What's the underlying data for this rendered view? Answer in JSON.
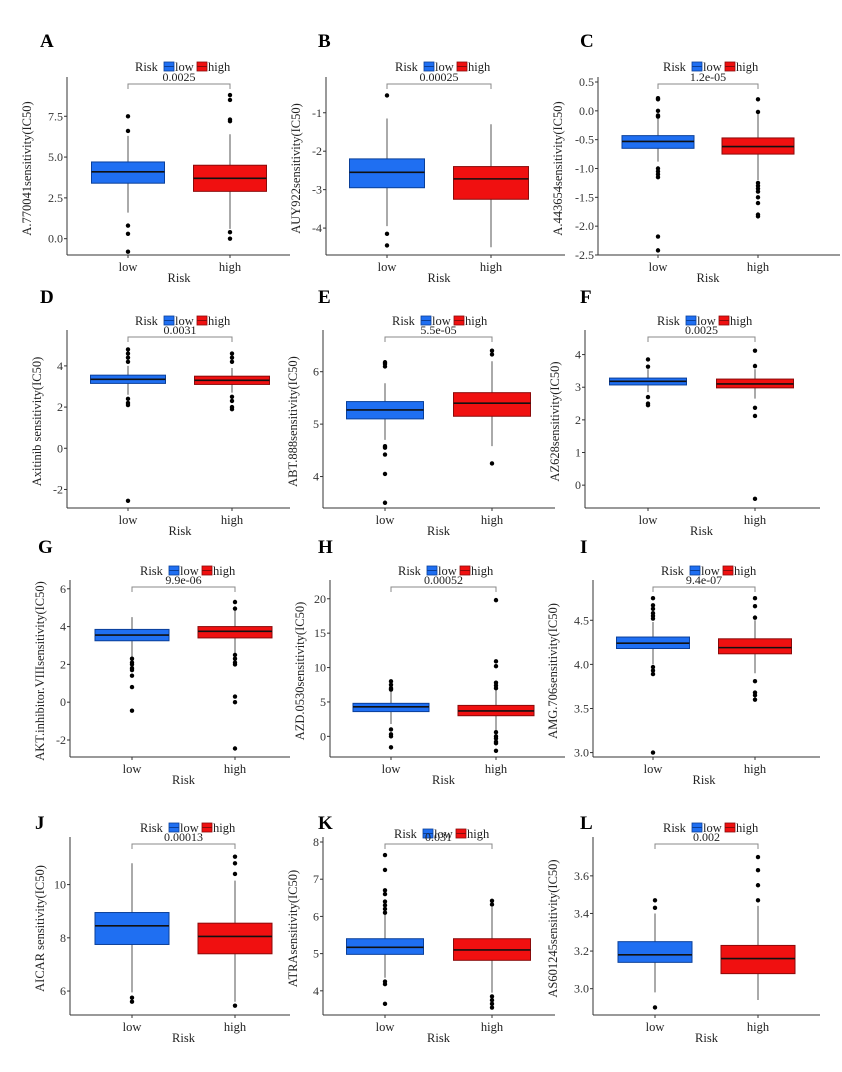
{
  "figure": {
    "legend_title": "Risk",
    "legend_items": [
      {
        "label": "low",
        "color": "#1f6ff2"
      },
      {
        "label": "high",
        "color": "#f01010"
      }
    ],
    "xlabel": "Risk",
    "categories": [
      "low",
      "high"
    ]
  },
  "chart_data": [
    {
      "panel": "A",
      "type": "boxplot",
      "ylabel": "A.770041sensitivity(IC50)",
      "xlabel": "Risk",
      "categories": [
        "low",
        "high"
      ],
      "pvalue": "0.0025",
      "ylim": [
        -1.0,
        9.6
      ],
      "yticks": [
        0.0,
        2.5,
        5.0,
        7.5
      ],
      "ytick_labels": [
        "0.0",
        "2.5",
        "5.0",
        "7.5"
      ],
      "series": [
        {
          "name": "low",
          "q1": 3.4,
          "median": 4.1,
          "q3": 4.7,
          "whisker_low": 1.6,
          "whisker_high": 6.3,
          "outliers": [
            7.5,
            6.6,
            0.8,
            0.3,
            -0.8
          ]
        },
        {
          "name": "high",
          "q1": 2.9,
          "median": 3.7,
          "q3": 4.5,
          "whisker_low": 0.6,
          "whisker_high": 6.4,
          "outliers": [
            8.8,
            8.5,
            7.3,
            7.2,
            0.4,
            0.0
          ]
        }
      ]
    },
    {
      "panel": "B",
      "type": "boxplot",
      "ylabel": "AUY922sensitivity(IC50)",
      "xlabel": "Risk",
      "categories": [
        "low",
        "high"
      ],
      "pvalue": "0.00025",
      "ylim": [
        -4.7,
        -0.2
      ],
      "yticks": [
        -4,
        -3,
        -2,
        -1
      ],
      "ytick_labels": [
        "-4",
        "-3",
        "-2",
        "-1"
      ],
      "series": [
        {
          "name": "low",
          "q1": -2.95,
          "median": -2.55,
          "q3": -2.2,
          "whisker_low": -3.95,
          "whisker_high": -1.15,
          "outliers": [
            -0.55,
            -4.15,
            -4.45
          ]
        },
        {
          "name": "high",
          "q1": -3.25,
          "median": -2.72,
          "q3": -2.4,
          "whisker_low": -4.5,
          "whisker_high": -1.3,
          "outliers": []
        }
      ]
    },
    {
      "panel": "C",
      "type": "boxplot",
      "ylabel": "A.443654sensitivity(IC50)",
      "xlabel": "Risk",
      "categories": [
        "low",
        "high"
      ],
      "pvalue": "1.2e-05",
      "ylim": [
        -2.5,
        0.5
      ],
      "yticks": [
        -2.5,
        -2.0,
        -1.5,
        -1.0,
        -0.5,
        0.0,
        0.5
      ],
      "ytick_labels": [
        "-2.5",
        "-2.0",
        "-1.5",
        "-1.0",
        "-0.5",
        "0.0",
        "0.5"
      ],
      "series": [
        {
          "name": "low",
          "q1": -0.65,
          "median": -0.53,
          "q3": -0.43,
          "whisker_low": -0.88,
          "whisker_high": -0.1,
          "outliers": [
            0.22,
            0.2,
            0.0,
            -0.08,
            -0.1,
            -1.0,
            -1.05,
            -1.1,
            -1.15,
            -2.18,
            -2.42
          ]
        },
        {
          "name": "high",
          "q1": -0.75,
          "median": -0.62,
          "q3": -0.47,
          "whisker_low": -1.2,
          "whisker_high": -0.05,
          "outliers": [
            0.2,
            -0.02,
            -1.25,
            -1.3,
            -1.35,
            -1.4,
            -1.5,
            -1.6,
            -1.8,
            -1.83
          ]
        }
      ]
    },
    {
      "panel": "D",
      "type": "boxplot",
      "ylabel": "Axitinib sensitivity(IC50)",
      "xlabel": "Risk",
      "categories": [
        "low",
        "high"
      ],
      "pvalue": "0.0031",
      "ylim": [
        -2.9,
        5.5
      ],
      "yticks": [
        -2,
        0,
        2,
        4
      ],
      "ytick_labels": [
        "-2",
        "0",
        "2",
        "4"
      ],
      "series": [
        {
          "name": "low",
          "q1": 3.15,
          "median": 3.35,
          "q3": 3.55,
          "whisker_low": 2.6,
          "whisker_high": 4.0,
          "outliers": [
            4.8,
            4.6,
            4.4,
            4.2,
            2.4,
            2.2,
            2.1,
            -2.55
          ]
        },
        {
          "name": "high",
          "q1": 3.1,
          "median": 3.3,
          "q3": 3.5,
          "whisker_low": 2.7,
          "whisker_high": 3.9,
          "outliers": [
            4.6,
            4.4,
            4.2,
            2.5,
            2.3,
            2.0,
            1.9
          ]
        }
      ]
    },
    {
      "panel": "E",
      "type": "boxplot",
      "ylabel": "ABT.888sensitivity(IC50)",
      "xlabel": "Risk",
      "categories": [
        "low",
        "high"
      ],
      "pvalue": "5.5e-05",
      "ylim": [
        3.4,
        6.7
      ],
      "yticks": [
        4,
        5,
        6
      ],
      "ytick_labels": [
        "4",
        "5",
        "6"
      ],
      "series": [
        {
          "name": "low",
          "q1": 5.1,
          "median": 5.27,
          "q3": 5.43,
          "whisker_low": 4.7,
          "whisker_high": 5.78,
          "outliers": [
            6.18,
            6.15,
            6.1,
            4.58,
            4.55,
            4.42,
            4.05,
            3.5
          ]
        },
        {
          "name": "high",
          "q1": 5.15,
          "median": 5.4,
          "q3": 5.6,
          "whisker_low": 4.58,
          "whisker_high": 6.2,
          "outliers": [
            6.4,
            6.33,
            4.25
          ]
        }
      ]
    },
    {
      "panel": "F",
      "type": "boxplot",
      "ylabel": "AZ628sensitivity(IC50)",
      "xlabel": "Risk",
      "categories": [
        "low",
        "high"
      ],
      "pvalue": "0.0025",
      "ylim": [
        -0.7,
        4.6
      ],
      "yticks": [
        0,
        1,
        2,
        3,
        4
      ],
      "ytick_labels": [
        "0",
        "1",
        "2",
        "3",
        "4"
      ],
      "series": [
        {
          "name": "low",
          "q1": 3.07,
          "median": 3.18,
          "q3": 3.28,
          "whisker_low": 2.85,
          "whisker_high": 3.55,
          "outliers": [
            3.85,
            3.63,
            2.7,
            2.5,
            2.45
          ]
        },
        {
          "name": "high",
          "q1": 2.98,
          "median": 3.1,
          "q3": 3.25,
          "whisker_low": 2.65,
          "whisker_high": 3.55,
          "outliers": [
            4.12,
            3.65,
            2.37,
            2.12,
            -0.42
          ]
        }
      ]
    },
    {
      "panel": "G",
      "type": "boxplot",
      "ylabel": "AKT.inhibitor.VIIIsensitivity(IC50)",
      "xlabel": "Risk",
      "categories": [
        "low",
        "high"
      ],
      "pvalue": "9.9e-06",
      "ylim": [
        -2.9,
        6.2
      ],
      "yticks": [
        -2,
        0,
        2,
        4,
        6
      ],
      "ytick_labels": [
        "-2",
        "0",
        "2",
        "4",
        "6"
      ],
      "series": [
        {
          "name": "low",
          "q1": 3.25,
          "median": 3.55,
          "q3": 3.85,
          "whisker_low": 2.4,
          "whisker_high": 4.5,
          "outliers": [
            2.3,
            2.1,
            2.0,
            1.8,
            1.7,
            1.4,
            0.8,
            -0.45
          ]
        },
        {
          "name": "high",
          "q1": 3.4,
          "median": 3.75,
          "q3": 4.0,
          "whisker_low": 2.6,
          "whisker_high": 4.9,
          "outliers": [
            5.3,
            4.95,
            2.5,
            2.3,
            2.1,
            2.0,
            0.3,
            0.0,
            -2.45
          ]
        }
      ]
    },
    {
      "panel": "H",
      "type": "boxplot",
      "ylabel": "AZD.0530sensitivity(IC50)",
      "xlabel": "Risk",
      "categories": [
        "low",
        "high"
      ],
      "pvalue": "0.00052",
      "ylim": [
        -3.0,
        22.0
      ],
      "yticks": [
        0,
        5,
        10,
        15,
        20
      ],
      "ytick_labels": [
        "0",
        "5",
        "10",
        "15",
        "20"
      ],
      "series": [
        {
          "name": "low",
          "q1": 3.6,
          "median": 4.3,
          "q3": 4.8,
          "whisker_low": 1.8,
          "whisker_high": 6.6,
          "outliers": [
            8.0,
            7.5,
            7.0,
            6.8,
            1.0,
            0.3,
            0.0,
            -1.6
          ]
        },
        {
          "name": "high",
          "q1": 3.0,
          "median": 3.7,
          "q3": 4.5,
          "whisker_low": 0.8,
          "whisker_high": 6.8,
          "outliers": [
            19.8,
            10.9,
            10.2,
            7.8,
            7.4,
            7.0,
            0.6,
            0.0,
            -0.3,
            -0.8,
            -1.0,
            -2.1
          ]
        }
      ]
    },
    {
      "panel": "I",
      "type": "boxplot",
      "ylabel": "AMG.706sensitivity(IC50)",
      "xlabel": "Risk",
      "categories": [
        "low",
        "high"
      ],
      "pvalue": "9.4e-07",
      "ylim": [
        2.95,
        4.9
      ],
      "yticks": [
        3.0,
        3.5,
        4.0,
        4.5
      ],
      "ytick_labels": [
        "3.0",
        "3.5",
        "4.0",
        "4.5"
      ],
      "series": [
        {
          "name": "low",
          "q1": 4.18,
          "median": 4.24,
          "q3": 4.31,
          "whisker_low": 4.0,
          "whisker_high": 4.48,
          "outliers": [
            4.75,
            4.67,
            4.63,
            4.58,
            4.55,
            4.52,
            3.97,
            3.93,
            3.89,
            3.0
          ]
        },
        {
          "name": "high",
          "q1": 4.12,
          "median": 4.19,
          "q3": 4.29,
          "whisker_low": 3.9,
          "whisker_high": 4.5,
          "outliers": [
            4.75,
            4.66,
            4.53,
            3.81,
            3.68,
            3.65,
            3.6
          ]
        }
      ]
    },
    {
      "panel": "J",
      "type": "boxplot",
      "ylabel": "AICAR sensitivity(IC50)",
      "xlabel": "Risk",
      "categories": [
        "low",
        "high"
      ],
      "pvalue": "0.00013",
      "ylim": [
        5.1,
        11.6
      ],
      "yticks": [
        6,
        8,
        10
      ],
      "ytick_labels": [
        "6",
        "8",
        "10"
      ],
      "series": [
        {
          "name": "low",
          "q1": 7.75,
          "median": 8.45,
          "q3": 8.95,
          "whisker_low": 5.95,
          "whisker_high": 10.8,
          "outliers": [
            5.75,
            5.6
          ]
        },
        {
          "name": "high",
          "q1": 7.4,
          "median": 8.05,
          "q3": 8.55,
          "whisker_low": 5.6,
          "whisker_high": 10.15,
          "outliers": [
            11.05,
            10.8,
            10.4,
            5.45
          ]
        }
      ]
    },
    {
      "panel": "K",
      "type": "boxplot",
      "ylabel": "ATRAsensitivity(IC50)",
      "xlabel": "Risk",
      "categories": [
        "low",
        "high"
      ],
      "pvalue": "0.031",
      "ylim": [
        3.35,
        8.0
      ],
      "yticks": [
        4,
        5,
        6,
        7,
        8
      ],
      "ytick_labels": [
        "4",
        "5",
        "6",
        "7",
        "8"
      ],
      "series": [
        {
          "name": "low",
          "q1": 4.98,
          "median": 5.17,
          "q3": 5.4,
          "whisker_low": 4.35,
          "whisker_high": 6.05,
          "outliers": [
            7.65,
            7.25,
            6.7,
            6.6,
            6.4,
            6.3,
            6.2,
            6.1,
            4.25,
            4.18,
            3.65
          ]
        },
        {
          "name": "high",
          "q1": 4.82,
          "median": 5.1,
          "q3": 5.4,
          "whisker_low": 3.95,
          "whisker_high": 6.25,
          "outliers": [
            6.42,
            6.32,
            3.85,
            3.75,
            3.65,
            3.55
          ]
        }
      ]
    },
    {
      "panel": "L",
      "type": "boxplot",
      "ylabel": "AS601245sensitivity(IC50)",
      "xlabel": "Risk",
      "categories": [
        "low",
        "high"
      ],
      "pvalue": "0.002",
      "ylim": [
        2.86,
        3.78
      ],
      "yticks": [
        3.0,
        3.2,
        3.4,
        3.6
      ],
      "ytick_labels": [
        "3.0",
        "3.2",
        "3.4",
        "3.6"
      ],
      "series": [
        {
          "name": "low",
          "q1": 3.14,
          "median": 3.18,
          "q3": 3.25,
          "whisker_low": 2.98,
          "whisker_high": 3.4,
          "outliers": [
            3.47,
            3.43,
            2.9
          ]
        },
        {
          "name": "high",
          "q1": 3.08,
          "median": 3.16,
          "q3": 3.23,
          "whisker_low": 2.94,
          "whisker_high": 3.44,
          "outliers": [
            3.7,
            3.63,
            3.55,
            3.47
          ]
        }
      ]
    }
  ]
}
